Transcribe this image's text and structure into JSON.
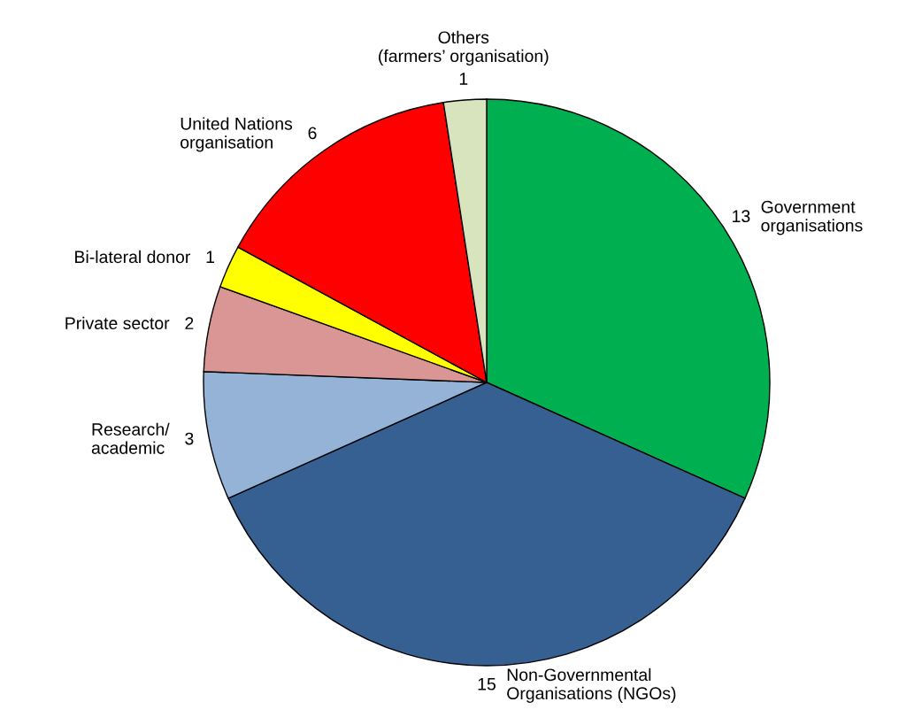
{
  "chart_data": {
    "type": "pie",
    "categories": [
      "Government\norganisations",
      "Non-Governmental\nOrganisations (NGOs)",
      "Research/\nacademic",
      "Private sector",
      "Bi-lateral donor",
      "United Nations\norganisation",
      "Others\n(farmers’ organisation)"
    ],
    "values": [
      13,
      15,
      3,
      2,
      1,
      6,
      1
    ],
    "colors": [
      "#00b050",
      "#376092",
      "#95b3d7",
      "#d99694",
      "#ffff00",
      "#ff0000",
      "#d7e4bd"
    ],
    "data_labels": true
  }
}
